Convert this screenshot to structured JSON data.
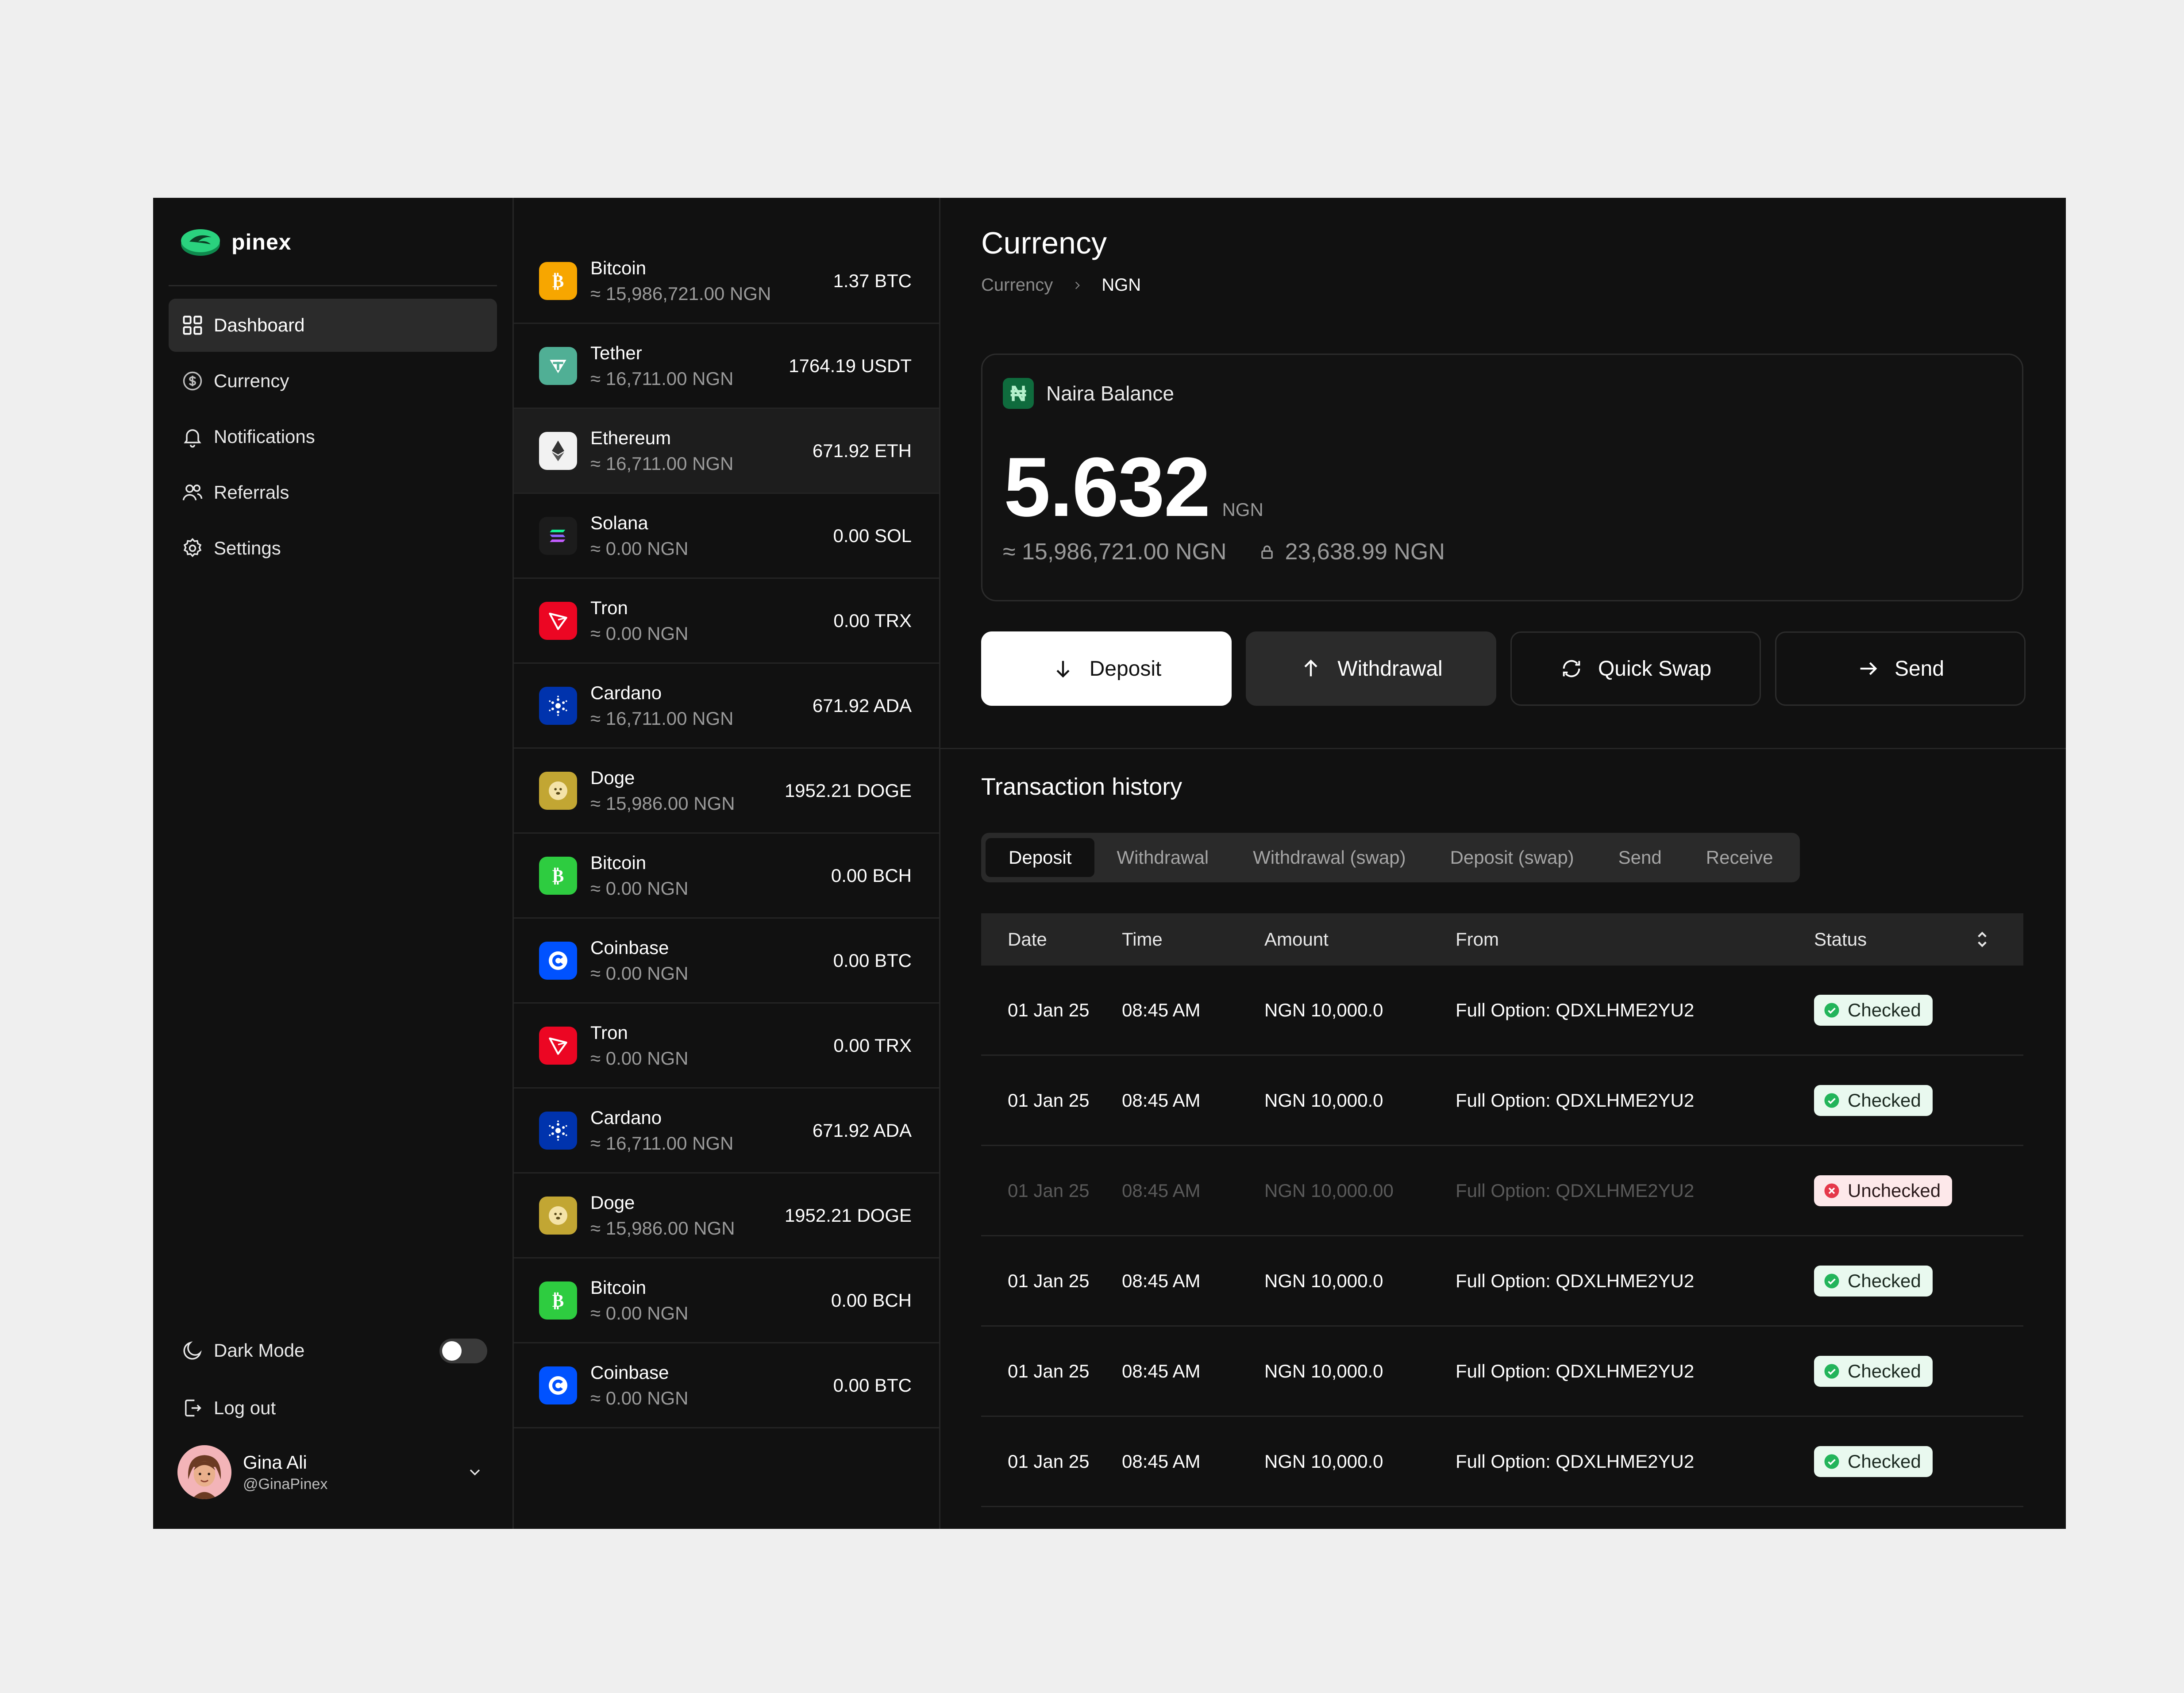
{
  "app": {
    "name": "pinex"
  },
  "sidebar": {
    "items": [
      {
        "label": "Dashboard",
        "icon": "grid-icon",
        "active": true
      },
      {
        "label": "Currency",
        "icon": "dollar-circle-icon"
      },
      {
        "label": "Notifications",
        "icon": "bell-icon"
      },
      {
        "label": "Referrals",
        "icon": "users-icon"
      },
      {
        "label": "Settings",
        "icon": "gear-icon"
      }
    ],
    "dark_mode_label": "Dark Mode",
    "dark_mode_on": false,
    "logout_label": "Log out",
    "user": {
      "name": "Gina Ali",
      "handle": "@GinaPinex"
    }
  },
  "assets": [
    {
      "name": "Bitcoin",
      "value": "≈ 15,986,721.00 NGN",
      "amount": "1.37 BTC",
      "icon": "bitcoin-icon",
      "color": "#f7a600"
    },
    {
      "name": "Tether",
      "value": "≈ 16,711.00 NGN",
      "amount": "1764.19 USDT",
      "icon": "tether-icon",
      "color": "#50af95"
    },
    {
      "name": "Ethereum",
      "value": "≈ 16,711.00 NGN",
      "amount": "671.92 ETH",
      "icon": "ethereum-icon",
      "color": "#f2f2f2"
    },
    {
      "name": "Solana",
      "value": "≈ 0.00 NGN",
      "amount": "0.00 SOL",
      "icon": "solana-icon",
      "color": "#1c1c1c"
    },
    {
      "name": "Tron",
      "value": "≈ 0.00 NGN",
      "amount": "0.00 TRX",
      "icon": "tron-icon",
      "color": "#ec0623"
    },
    {
      "name": "Cardano",
      "value": "≈ 16,711.00 NGN",
      "amount": "671.92 ADA",
      "icon": "cardano-icon",
      "color": "#0033ad"
    },
    {
      "name": "Doge",
      "value": "≈ 15,986.00 NGN",
      "amount": "1952.21 DOGE",
      "icon": "doge-icon",
      "color": "#c2a633"
    },
    {
      "name": "Bitcoin",
      "value": "≈ 0.00 NGN",
      "amount": "0.00 BCH",
      "icon": "bitcoin-cash-icon",
      "color": "#2ecc40"
    },
    {
      "name": "Coinbase",
      "value": "≈ 0.00 NGN",
      "amount": "0.00 BTC",
      "icon": "coinbase-icon",
      "color": "#0052ff"
    },
    {
      "name": "Tron",
      "value": "≈ 0.00 NGN",
      "amount": "0.00 TRX",
      "icon": "tron-icon",
      "color": "#ec0623"
    },
    {
      "name": "Cardano",
      "value": "≈ 16,711.00 NGN",
      "amount": "671.92 ADA",
      "icon": "cardano-icon",
      "color": "#0033ad"
    },
    {
      "name": "Doge",
      "value": "≈ 15,986.00 NGN",
      "amount": "1952.21 DOGE",
      "icon": "doge-icon",
      "color": "#c2a633"
    },
    {
      "name": "Bitcoin",
      "value": "≈ 0.00 NGN",
      "amount": "0.00 BCH",
      "icon": "bitcoin-cash-icon",
      "color": "#2ecc40"
    },
    {
      "name": "Coinbase",
      "value": "≈ 0.00 NGN",
      "amount": "0.00 BTC",
      "icon": "coinbase-icon",
      "color": "#0052ff"
    }
  ],
  "main": {
    "title": "Currency",
    "breadcrumb": [
      "Currency",
      "NGN"
    ],
    "balance": {
      "label": "Naira Balance",
      "symbol": "₦",
      "amount": "5.632",
      "currency": "NGN",
      "approx": "≈ 15,986,721.00 NGN",
      "locked": "23,638.99 NGN"
    },
    "actions": {
      "deposit": "Deposit",
      "withdrawal": "Withdrawal",
      "quick_swap": "Quick Swap",
      "send": "Send"
    },
    "transactions": {
      "title": "Transaction history",
      "tabs": [
        "Deposit",
        "Withdrawal",
        "Withdrawal (swap)",
        "Deposit (swap)",
        "Send",
        "Receive"
      ],
      "active_tab": "Deposit",
      "columns": [
        "Date",
        "Time",
        "Amount",
        "From",
        "Status"
      ],
      "rows": [
        {
          "date": "01 Jan 25",
          "time": "08:45 AM",
          "amount": "NGN 10,000.0",
          "from": "Full Option: QDXLHME2YU2",
          "status": "Checked"
        },
        {
          "date": "01 Jan 25",
          "time": "08:45 AM",
          "amount": "NGN 10,000.0",
          "from": "Full Option: QDXLHME2YU2",
          "status": "Checked"
        },
        {
          "date": "01 Jan 25",
          "time": "08:45 AM",
          "amount": "NGN 10,000.00",
          "from": "Full Option: QDXLHME2YU2",
          "status": "Unchecked"
        },
        {
          "date": "01 Jan 25",
          "time": "08:45 AM",
          "amount": "NGN 10,000.0",
          "from": "Full Option: QDXLHME2YU2",
          "status": "Checked"
        },
        {
          "date": "01 Jan 25",
          "time": "08:45 AM",
          "amount": "NGN 10,000.0",
          "from": "Full Option: QDXLHME2YU2",
          "status": "Checked"
        },
        {
          "date": "01 Jan 25",
          "time": "08:45 AM",
          "amount": "NGN 10,000.0",
          "from": "Full Option: QDXLHME2YU2",
          "status": "Checked"
        }
      ]
    }
  }
}
